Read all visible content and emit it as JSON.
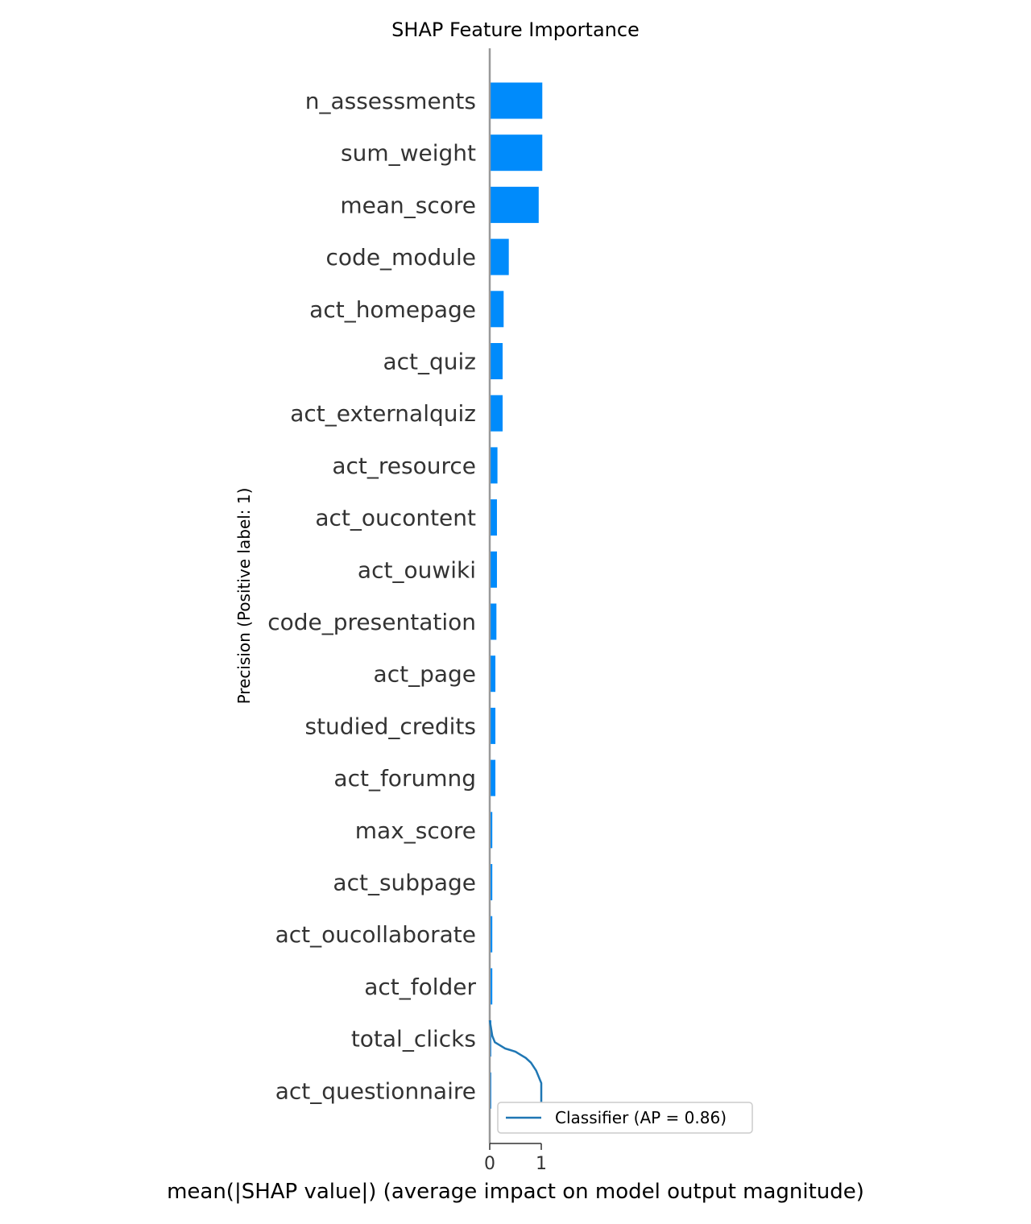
{
  "chart_data": {
    "type": "bar",
    "orientation": "horizontal",
    "title": "SHAP Feature Importance",
    "xlabel": "mean(|SHAP value|) (average impact on model output magnitude)",
    "ylabel": "Precision (Positive label: 1)",
    "xlim": [
      0,
      1
    ],
    "x_ticks": [
      "0",
      "1"
    ],
    "bar_color": "#008bfb",
    "categories": [
      "n_assessments",
      "sum_weight",
      "mean_score",
      "code_module",
      "act_homepage",
      "act_quiz",
      "act_externalquiz",
      "act_resource",
      "act_oucontent",
      "act_ouwiki",
      "code_presentation",
      "act_page",
      "studied_credits",
      "act_forumng",
      "max_score",
      "act_subpage",
      "act_oucollaborate",
      "act_folder",
      "total_clicks",
      "act_questionnaire"
    ],
    "values": [
      1.02,
      1.02,
      0.95,
      0.37,
      0.27,
      0.25,
      0.25,
      0.15,
      0.14,
      0.14,
      0.13,
      0.11,
      0.11,
      0.11,
      0.05,
      0.05,
      0.05,
      0.05,
      0.03,
      0.03
    ],
    "overlay_line": {
      "legend": "Classifier (AP = 0.86)",
      "color": "#1f77b4",
      "recall": [
        0.0,
        0.02,
        0.05,
        0.1,
        0.2,
        0.3,
        0.4,
        0.5,
        0.6,
        0.7,
        0.8,
        0.9,
        0.95,
        1.0,
        1.0
      ],
      "precision": [
        1.0,
        0.98,
        0.95,
        0.93,
        0.92,
        0.91,
        0.905,
        0.9,
        0.89,
        0.88,
        0.865,
        0.84,
        0.82,
        0.8,
        0.67
      ]
    }
  }
}
